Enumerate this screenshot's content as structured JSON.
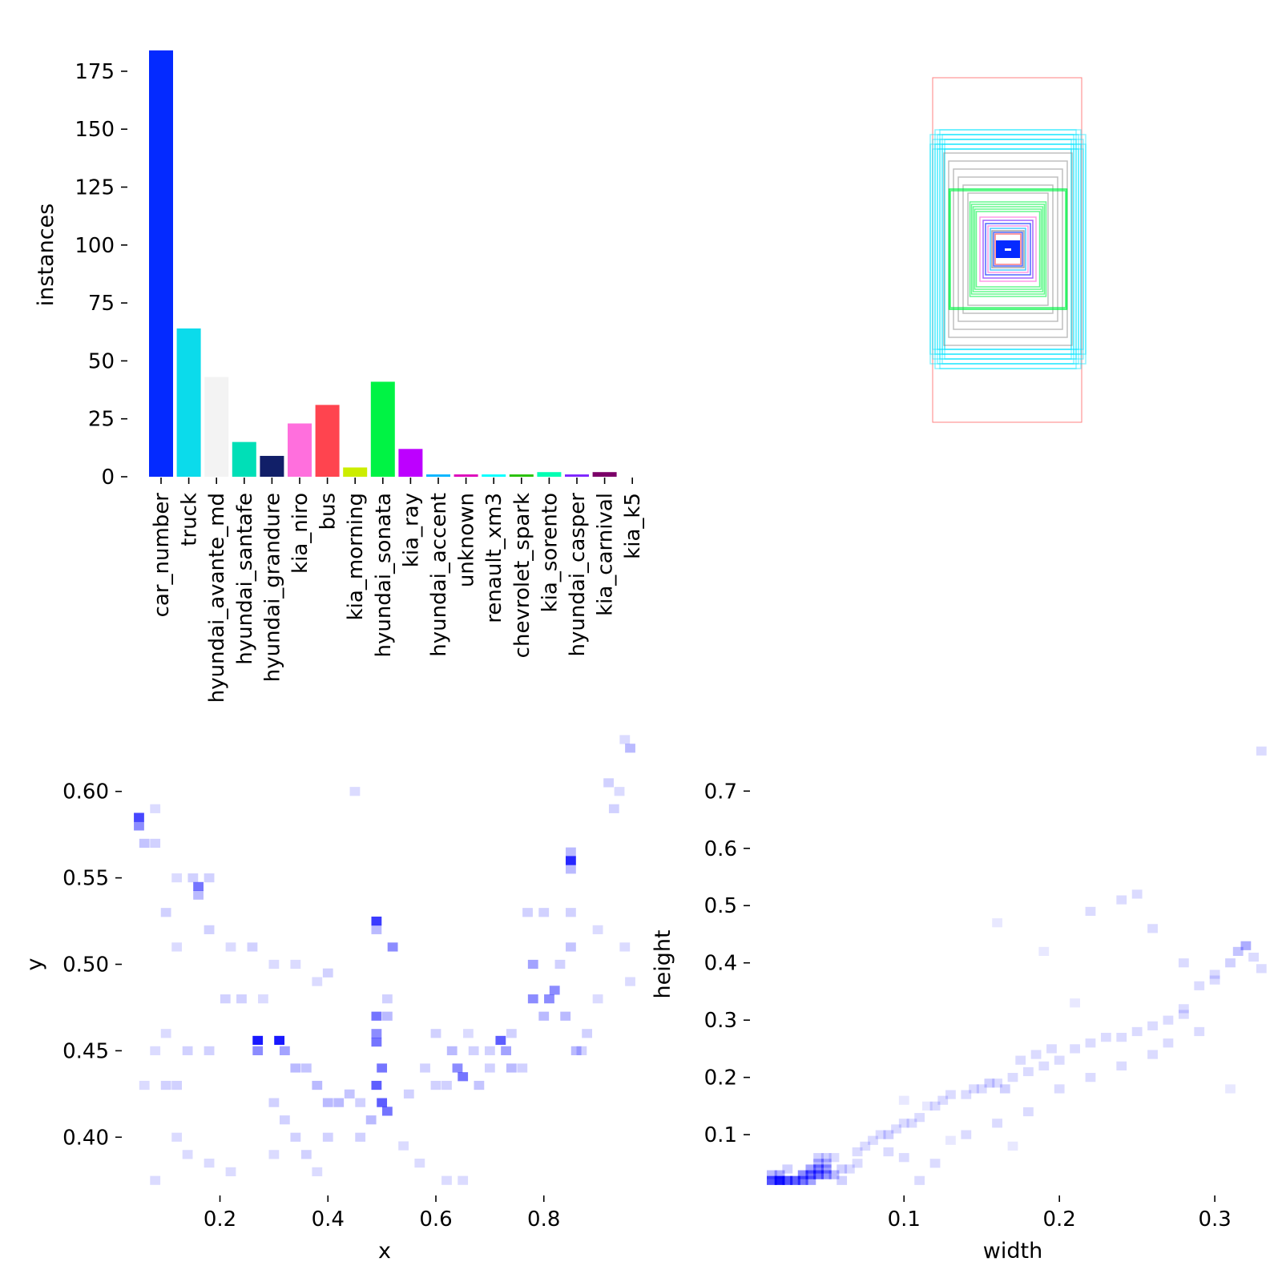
{
  "chart_data": [
    {
      "type": "bar",
      "ylabel": "instances",
      "ylim": [
        0,
        185
      ],
      "yticks": [
        0,
        25,
        50,
        75,
        100,
        125,
        150,
        175
      ],
      "categories": [
        "car_number",
        "truck",
        "hyundai_avante_md",
        "hyundai_santafe",
        "hyundai_grandure",
        "kia_niro",
        "bus",
        "kia_morning",
        "hyundai_sonata",
        "kia_ray",
        "hyundai_accent",
        "unknown",
        "renault_xm3",
        "chevrolet_spark",
        "kia_sorento",
        "hyundai_casper",
        "kia_carnival",
        "kia_k5"
      ],
      "values": [
        184,
        64,
        43,
        15,
        9,
        23,
        31,
        4,
        41,
        12,
        1,
        1,
        1,
        1,
        2,
        1,
        2,
        0
      ],
      "colors": [
        "#042aff",
        "#0bdbeb",
        "#f3f3f3",
        "#00dfb7",
        "#111f68",
        "#ff6fdd",
        "#ff444f",
        "#cced00",
        "#00f344",
        "#bd00ff",
        "#00b4ff",
        "#dd00ba",
        "#00ffff",
        "#26c000",
        "#01ffb3",
        "#7d24ff",
        "#7b0068",
        "#ff1b6c"
      ]
    },
    {
      "type": "boxes",
      "description_colors": [
        "#ff5050",
        "#00e5ff",
        "#00f344",
        "#042aff",
        "#ff6fdd",
        "#7f7f7f"
      ]
    },
    {
      "type": "heatmap",
      "xlabel": "x",
      "ylabel": "y",
      "xlim": [
        0.03,
        0.98
      ],
      "ylim": [
        0.37,
        0.63
      ],
      "xticks": [
        0.2,
        0.4,
        0.6,
        0.8
      ],
      "yticks": [
        0.4,
        0.45,
        0.5,
        0.55,
        0.6
      ],
      "color": "#0000ff",
      "points": [
        [
          0.05,
          0.585,
          0.8
        ],
        [
          0.05,
          0.58,
          0.5
        ],
        [
          0.06,
          0.57,
          0.25
        ],
        [
          0.08,
          0.59,
          0.15
        ],
        [
          0.08,
          0.57,
          0.2
        ],
        [
          0.16,
          0.545,
          0.6
        ],
        [
          0.16,
          0.54,
          0.3
        ],
        [
          0.15,
          0.55,
          0.2
        ],
        [
          0.18,
          0.55,
          0.2
        ],
        [
          0.12,
          0.55,
          0.15
        ],
        [
          0.1,
          0.53,
          0.2
        ],
        [
          0.18,
          0.52,
          0.2
        ],
        [
          0.22,
          0.51,
          0.15
        ],
        [
          0.26,
          0.51,
          0.2
        ],
        [
          0.27,
          0.456,
          1.0
        ],
        [
          0.27,
          0.45,
          0.5
        ],
        [
          0.31,
          0.456,
          1.0
        ],
        [
          0.32,
          0.45,
          0.4
        ],
        [
          0.34,
          0.44,
          0.3
        ],
        [
          0.36,
          0.44,
          0.25
        ],
        [
          0.38,
          0.43,
          0.3
        ],
        [
          0.4,
          0.42,
          0.3
        ],
        [
          0.42,
          0.42,
          0.3
        ],
        [
          0.44,
          0.425,
          0.25
        ],
        [
          0.49,
          0.525,
          0.85
        ],
        [
          0.49,
          0.52,
          0.3
        ],
        [
          0.49,
          0.47,
          0.6
        ],
        [
          0.49,
          0.46,
          0.5
        ],
        [
          0.49,
          0.455,
          0.6
        ],
        [
          0.5,
          0.44,
          0.6
        ],
        [
          0.49,
          0.43,
          0.7
        ],
        [
          0.5,
          0.42,
          0.7
        ],
        [
          0.51,
          0.415,
          0.6
        ],
        [
          0.48,
          0.41,
          0.3
        ],
        [
          0.52,
          0.51,
          0.5
        ],
        [
          0.51,
          0.48,
          0.2
        ],
        [
          0.51,
          0.47,
          0.3
        ],
        [
          0.55,
          0.425,
          0.2
        ],
        [
          0.64,
          0.44,
          0.5
        ],
        [
          0.65,
          0.435,
          0.6
        ],
        [
          0.63,
          0.45,
          0.3
        ],
        [
          0.67,
          0.45,
          0.2
        ],
        [
          0.7,
          0.45,
          0.2
        ],
        [
          0.72,
          0.456,
          0.7
        ],
        [
          0.73,
          0.45,
          0.4
        ],
        [
          0.74,
          0.44,
          0.3
        ],
        [
          0.78,
          0.48,
          0.5
        ],
        [
          0.78,
          0.5,
          0.4
        ],
        [
          0.81,
          0.48,
          0.5
        ],
        [
          0.82,
          0.485,
          0.5
        ],
        [
          0.8,
          0.47,
          0.3
        ],
        [
          0.84,
          0.47,
          0.3
        ],
        [
          0.86,
          0.45,
          0.3
        ],
        [
          0.85,
          0.56,
          0.95
        ],
        [
          0.85,
          0.565,
          0.3
        ],
        [
          0.85,
          0.555,
          0.3
        ],
        [
          0.87,
          0.45,
          0.2
        ],
        [
          0.88,
          0.46,
          0.2
        ],
        [
          0.93,
          0.59,
          0.2
        ],
        [
          0.94,
          0.6,
          0.15
        ],
        [
          0.96,
          0.625,
          0.3
        ],
        [
          0.95,
          0.63,
          0.15
        ],
        [
          0.92,
          0.605,
          0.2
        ],
        [
          0.12,
          0.43,
          0.2
        ],
        [
          0.1,
          0.43,
          0.2
        ],
        [
          0.06,
          0.43,
          0.15
        ],
        [
          0.14,
          0.45,
          0.2
        ],
        [
          0.18,
          0.45,
          0.2
        ],
        [
          0.21,
          0.48,
          0.2
        ],
        [
          0.24,
          0.48,
          0.2
        ],
        [
          0.28,
          0.48,
          0.15
        ],
        [
          0.3,
          0.42,
          0.2
        ],
        [
          0.32,
          0.41,
          0.2
        ],
        [
          0.34,
          0.4,
          0.2
        ],
        [
          0.36,
          0.39,
          0.2
        ],
        [
          0.38,
          0.38,
          0.15
        ],
        [
          0.3,
          0.39,
          0.15
        ],
        [
          0.4,
          0.4,
          0.2
        ],
        [
          0.46,
          0.4,
          0.2
        ],
        [
          0.46,
          0.42,
          0.2
        ],
        [
          0.58,
          0.44,
          0.2
        ],
        [
          0.6,
          0.43,
          0.2
        ],
        [
          0.62,
          0.43,
          0.2
        ],
        [
          0.68,
          0.43,
          0.25
        ],
        [
          0.7,
          0.44,
          0.2
        ],
        [
          0.74,
          0.46,
          0.2
        ],
        [
          0.76,
          0.44,
          0.2
        ],
        [
          0.83,
          0.5,
          0.2
        ],
        [
          0.85,
          0.51,
          0.25
        ],
        [
          0.85,
          0.53,
          0.2
        ],
        [
          0.8,
          0.53,
          0.2
        ],
        [
          0.77,
          0.53,
          0.2
        ],
        [
          0.9,
          0.52,
          0.15
        ],
        [
          0.95,
          0.51,
          0.15
        ],
        [
          0.96,
          0.49,
          0.15
        ],
        [
          0.9,
          0.48,
          0.15
        ],
        [
          0.6,
          0.46,
          0.2
        ],
        [
          0.66,
          0.46,
          0.15
        ],
        [
          0.54,
          0.395,
          0.15
        ],
        [
          0.57,
          0.385,
          0.15
        ],
        [
          0.62,
          0.375,
          0.15
        ],
        [
          0.65,
          0.375,
          0.15
        ],
        [
          0.12,
          0.4,
          0.15
        ],
        [
          0.14,
          0.39,
          0.15
        ],
        [
          0.18,
          0.385,
          0.15
        ],
        [
          0.22,
          0.38,
          0.15
        ],
        [
          0.08,
          0.375,
          0.15
        ],
        [
          0.45,
          0.6,
          0.15
        ],
        [
          0.38,
          0.49,
          0.15
        ],
        [
          0.4,
          0.495,
          0.2
        ],
        [
          0.34,
          0.5,
          0.15
        ],
        [
          0.3,
          0.5,
          0.15
        ],
        [
          0.12,
          0.51,
          0.15
        ],
        [
          0.08,
          0.45,
          0.15
        ],
        [
          0.1,
          0.46,
          0.15
        ]
      ]
    },
    {
      "type": "heatmap",
      "xlabel": "width",
      "ylabel": "height",
      "xlim": [
        0.005,
        0.335
      ],
      "ylim": [
        0.005,
        0.79
      ],
      "xticks": [
        0.1,
        0.2,
        0.3
      ],
      "yticks": [
        0.1,
        0.2,
        0.3,
        0.4,
        0.5,
        0.6,
        0.7
      ],
      "color": "#0000ff",
      "points": [
        [
          0.015,
          0.02,
          0.75
        ],
        [
          0.02,
          0.02,
          1.0
        ],
        [
          0.025,
          0.02,
          0.75
        ],
        [
          0.03,
          0.02,
          0.7
        ],
        [
          0.035,
          0.02,
          0.6
        ],
        [
          0.04,
          0.02,
          0.4
        ],
        [
          0.035,
          0.03,
          0.5
        ],
        [
          0.04,
          0.03,
          0.6
        ],
        [
          0.045,
          0.03,
          0.6
        ],
        [
          0.05,
          0.03,
          0.45
        ],
        [
          0.055,
          0.03,
          0.3
        ],
        [
          0.04,
          0.04,
          0.4
        ],
        [
          0.045,
          0.04,
          0.5
        ],
        [
          0.05,
          0.04,
          0.4
        ],
        [
          0.045,
          0.05,
          0.3
        ],
        [
          0.05,
          0.05,
          0.25
        ],
        [
          0.05,
          0.06,
          0.2
        ],
        [
          0.045,
          0.06,
          0.2
        ],
        [
          0.055,
          0.06,
          0.15
        ],
        [
          0.02,
          0.03,
          0.35
        ],
        [
          0.015,
          0.03,
          0.3
        ],
        [
          0.025,
          0.04,
          0.2
        ],
        [
          0.06,
          0.04,
          0.2
        ],
        [
          0.065,
          0.04,
          0.15
        ],
        [
          0.07,
          0.05,
          0.15
        ],
        [
          0.07,
          0.07,
          0.15
        ],
        [
          0.075,
          0.08,
          0.15
        ],
        [
          0.08,
          0.09,
          0.15
        ],
        [
          0.085,
          0.1,
          0.15
        ],
        [
          0.09,
          0.1,
          0.2
        ],
        [
          0.095,
          0.11,
          0.15
        ],
        [
          0.1,
          0.12,
          0.15
        ],
        [
          0.105,
          0.12,
          0.15
        ],
        [
          0.11,
          0.13,
          0.15
        ],
        [
          0.12,
          0.15,
          0.15
        ],
        [
          0.125,
          0.16,
          0.15
        ],
        [
          0.13,
          0.17,
          0.15
        ],
        [
          0.14,
          0.17,
          0.15
        ],
        [
          0.145,
          0.18,
          0.15
        ],
        [
          0.15,
          0.18,
          0.15
        ],
        [
          0.155,
          0.19,
          0.2
        ],
        [
          0.16,
          0.19,
          0.15
        ],
        [
          0.165,
          0.18,
          0.2
        ],
        [
          0.17,
          0.2,
          0.15
        ],
        [
          0.18,
          0.21,
          0.15
        ],
        [
          0.19,
          0.22,
          0.15
        ],
        [
          0.2,
          0.23,
          0.15
        ],
        [
          0.21,
          0.25,
          0.15
        ],
        [
          0.22,
          0.26,
          0.15
        ],
        [
          0.23,
          0.27,
          0.15
        ],
        [
          0.24,
          0.27,
          0.15
        ],
        [
          0.25,
          0.28,
          0.15
        ],
        [
          0.26,
          0.29,
          0.15
        ],
        [
          0.27,
          0.3,
          0.15
        ],
        [
          0.28,
          0.31,
          0.15
        ],
        [
          0.3,
          0.37,
          0.15
        ],
        [
          0.31,
          0.4,
          0.2
        ],
        [
          0.32,
          0.43,
          0.35
        ],
        [
          0.315,
          0.42,
          0.25
        ],
        [
          0.325,
          0.41,
          0.15
        ],
        [
          0.33,
          0.39,
          0.15
        ],
        [
          0.3,
          0.38,
          0.15
        ],
        [
          0.29,
          0.36,
          0.15
        ],
        [
          0.28,
          0.32,
          0.15
        ],
        [
          0.06,
          0.02,
          0.2
        ],
        [
          0.11,
          0.02,
          0.15
        ],
        [
          0.12,
          0.05,
          0.15
        ],
        [
          0.1,
          0.06,
          0.15
        ],
        [
          0.09,
          0.07,
          0.15
        ],
        [
          0.14,
          0.1,
          0.15
        ],
        [
          0.16,
          0.12,
          0.15
        ],
        [
          0.18,
          0.14,
          0.15
        ],
        [
          0.2,
          0.18,
          0.15
        ],
        [
          0.22,
          0.2,
          0.15
        ],
        [
          0.24,
          0.22,
          0.15
        ],
        [
          0.26,
          0.24,
          0.15
        ],
        [
          0.27,
          0.26,
          0.15
        ],
        [
          0.29,
          0.28,
          0.15
        ],
        [
          0.24,
          0.51,
          0.15
        ],
        [
          0.25,
          0.52,
          0.15
        ],
        [
          0.22,
          0.49,
          0.15
        ],
        [
          0.26,
          0.46,
          0.15
        ],
        [
          0.28,
          0.4,
          0.15
        ],
        [
          0.33,
          0.77,
          0.15
        ],
        [
          0.16,
          0.47,
          0.1
        ],
        [
          0.19,
          0.42,
          0.1
        ],
        [
          0.21,
          0.33,
          0.1
        ],
        [
          0.175,
          0.23,
          0.15
        ],
        [
          0.185,
          0.24,
          0.15
        ],
        [
          0.195,
          0.25,
          0.15
        ],
        [
          0.31,
          0.18,
          0.1
        ],
        [
          0.17,
          0.08,
          0.1
        ],
        [
          0.13,
          0.09,
          0.1
        ],
        [
          0.115,
          0.15,
          0.1
        ],
        [
          0.1,
          0.16,
          0.1
        ]
      ]
    }
  ]
}
